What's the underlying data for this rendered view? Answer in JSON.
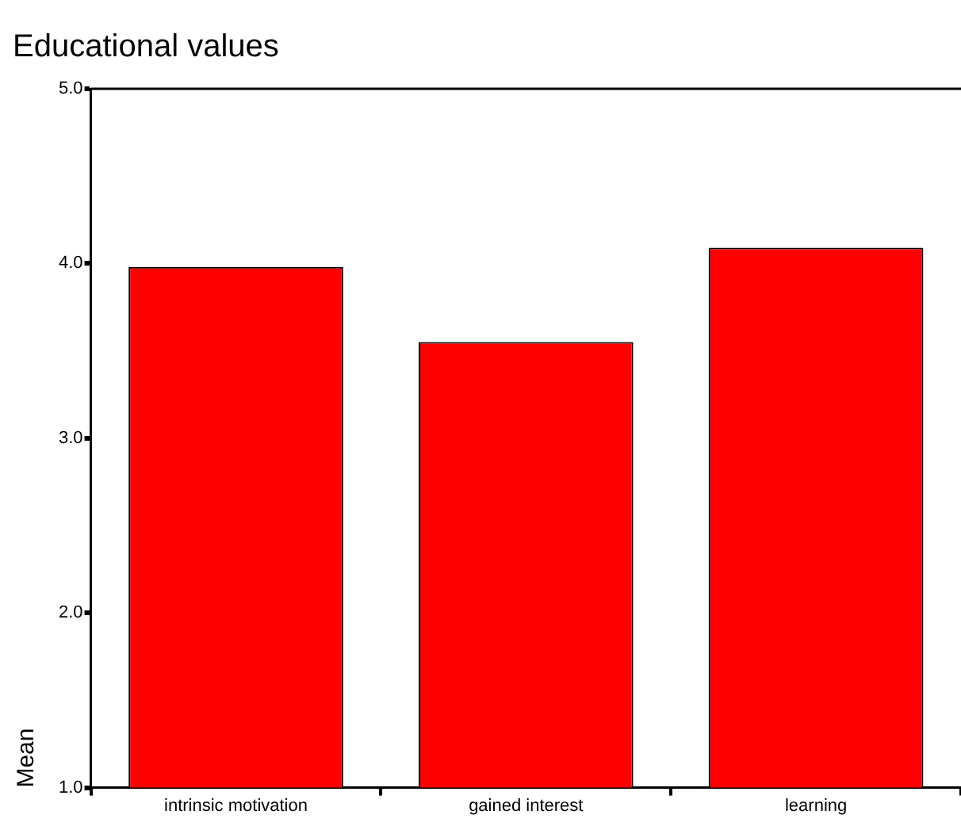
{
  "chart_data": {
    "type": "bar",
    "title": "Educational values",
    "ylabel": "Mean",
    "categories": [
      "intrinsic motivation",
      "gained interest",
      "learning"
    ],
    "values": [
      3.98,
      3.55,
      4.09
    ],
    "color": "#ff0000",
    "ylim": [
      1,
      5
    ],
    "yticks": [
      {
        "value": 1,
        "label": "1.0"
      },
      {
        "value": 2,
        "label": "2.0"
      },
      {
        "value": 3,
        "label": "3.0"
      },
      {
        "value": 4,
        "label": "4.0"
      },
      {
        "value": 5,
        "label": "5.0"
      }
    ],
    "grid": false,
    "legend": false
  }
}
